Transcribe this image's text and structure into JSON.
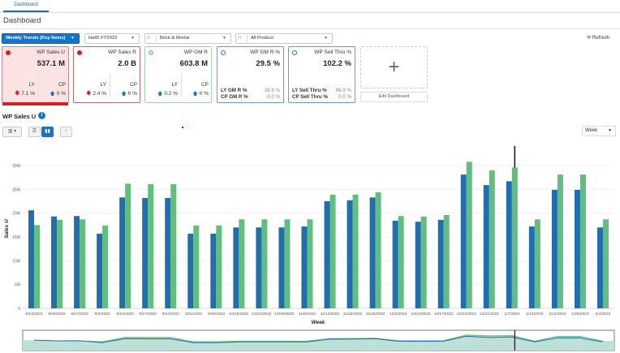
{
  "tabs": [
    {
      "label": "Dashboard"
    }
  ],
  "page_title": "Dashboard",
  "filters": {
    "view": "Weekly Trends (Key Items)",
    "period": "Half2 FY2022",
    "location": "Brick & Mortar",
    "product": "All Product"
  },
  "refresh_label": "Refresh",
  "tiles": [
    {
      "name": "WP Sales U",
      "value": "537.1 M",
      "status": "red",
      "ly_label": "LY",
      "ly_value": "7.1 %",
      "ly_dir": "down",
      "cp_label": "CP",
      "cp_value": "0 %",
      "cp_dir": "up"
    },
    {
      "name": "WP Sales R",
      "value": "2.0 B",
      "status": "red",
      "ly_label": "LY",
      "ly_value": "2.4 %",
      "ly_dir": "down",
      "cp_label": "CP",
      "cp_value": "0 %",
      "cp_dir": "up"
    },
    {
      "name": "WP GM R",
      "value": "603.8 M",
      "status": "green",
      "ly_label": "LY",
      "ly_value": "0.2 %",
      "ly_dir": "up",
      "cp_label": "CP",
      "cp_value": "0 %",
      "cp_dir": "up"
    },
    {
      "name": "WP GM R %",
      "value": "29.5 %",
      "status": "blue",
      "row1_label": "LY GM R %",
      "row1_value": "28.9 %",
      "row2_label": "CP GM R %",
      "row2_value": "0.0 %"
    },
    {
      "name": "WP Sell Thru %",
      "value": "102.2 %",
      "status": "blue",
      "row1_label": "LY Sell Thru %",
      "row1_value": "96.9 %",
      "row2_label": "CP Sell Thru %",
      "row2_value": "0.0 %"
    }
  ],
  "add_tile_symbol": "+",
  "edit_dashboard_label": "Edit Dashboard",
  "chart_section": {
    "title": "WP Sales U",
    "info_icon": "i",
    "granularity": "Week"
  },
  "colors": {
    "primary": "#1a73c6",
    "series_blue": "#1f6fad",
    "series_green": "#63bd7c",
    "alert_red": "#d62020"
  },
  "chart_data": {
    "type": "bar",
    "xlabel": "Week",
    "ylabel": "Sales U",
    "ylim": [
      0,
      30000000
    ],
    "yticks": [
      "0",
      "5M",
      "10M",
      "15M",
      "20M",
      "25M",
      "30M"
    ],
    "grid": true,
    "categories": [
      "8/13/2022",
      "8/20/2022",
      "8/27/2022",
      "9/3/2022",
      "9/10/2022",
      "9/17/2022",
      "9/24/2022",
      "10/1/2022",
      "10/8/2022",
      "10/15/2022",
      "10/22/2022",
      "10/29/2022",
      "11/5/2022",
      "11/12/2022",
      "11/19/2022",
      "11/26/2022",
      "12/3/2022",
      "12/10/2022",
      "12/17/2022",
      "12/24/2022",
      "12/31/2022",
      "1/7/2023",
      "1/14/2023",
      "1/21/2023",
      "1/28/2023",
      "2/4/2023"
    ],
    "series": [
      {
        "values": [
          20.6,
          19.3,
          19.4,
          15.7,
          23.3,
          23.2,
          23.2,
          15.7,
          15.7,
          17.0,
          17.0,
          17.0,
          17.2,
          22.5,
          22.7,
          23.3,
          18.4,
          18.2,
          18.6,
          28.1,
          25.9,
          26.7,
          17.2,
          24.9,
          24.9,
          17.0
        ],
        "unit": "M",
        "color": "#1f6fad"
      },
      {
        "values": [
          17.5,
          18.6,
          18.7,
          17.4,
          26.2,
          26.1,
          26.1,
          17.4,
          17.4,
          18.7,
          18.7,
          18.7,
          18.7,
          23.9,
          23.9,
          24.4,
          19.4,
          19.3,
          19.6,
          30.8,
          29.0,
          29.6,
          18.7,
          28.1,
          28.1,
          18.7
        ],
        "unit": "M",
        "color": "#63bd7c"
      }
    ],
    "marker_category": "1/7/2023"
  }
}
